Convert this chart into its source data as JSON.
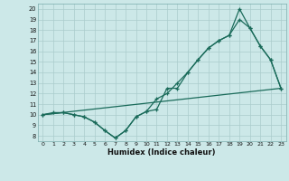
{
  "xlabel": "Humidex (Indice chaleur)",
  "bg_color": "#cce8e8",
  "grid_color": "#aacccc",
  "line_color": "#1a6b5a",
  "xlim": [
    -0.5,
    23.5
  ],
  "ylim": [
    7.5,
    20.5
  ],
  "xticks": [
    0,
    1,
    2,
    3,
    4,
    5,
    6,
    7,
    8,
    9,
    10,
    11,
    12,
    13,
    14,
    15,
    16,
    17,
    18,
    19,
    20,
    21,
    22,
    23
  ],
  "yticks": [
    8,
    9,
    10,
    11,
    12,
    13,
    14,
    15,
    16,
    17,
    18,
    19,
    20
  ],
  "series1_x": [
    0,
    1,
    2,
    3,
    4,
    5,
    6,
    7,
    8,
    9,
    10,
    11,
    12,
    13,
    14,
    15,
    16,
    17,
    18,
    19,
    20,
    21,
    22,
    23
  ],
  "series1_y": [
    10,
    10.2,
    10.2,
    10.0,
    9.8,
    9.3,
    8.5,
    7.8,
    8.5,
    9.8,
    10.3,
    10.5,
    12.5,
    12.5,
    14.0,
    15.2,
    16.3,
    17.0,
    17.5,
    20.0,
    18.2,
    16.5,
    15.2,
    12.5
  ],
  "series2_x": [
    0,
    2,
    3,
    4,
    5,
    6,
    7,
    8,
    9,
    10,
    11,
    12,
    13,
    14,
    15,
    16,
    17,
    18,
    19,
    20,
    21,
    22,
    23
  ],
  "series2_y": [
    10,
    10.2,
    10.0,
    9.8,
    9.3,
    8.5,
    7.8,
    8.5,
    9.8,
    10.3,
    11.5,
    12.0,
    13.0,
    14.0,
    15.2,
    16.3,
    17.0,
    17.5,
    19.0,
    18.2,
    16.5,
    15.2,
    12.5
  ],
  "series3_x": [
    0,
    23
  ],
  "series3_y": [
    10.0,
    12.5
  ]
}
